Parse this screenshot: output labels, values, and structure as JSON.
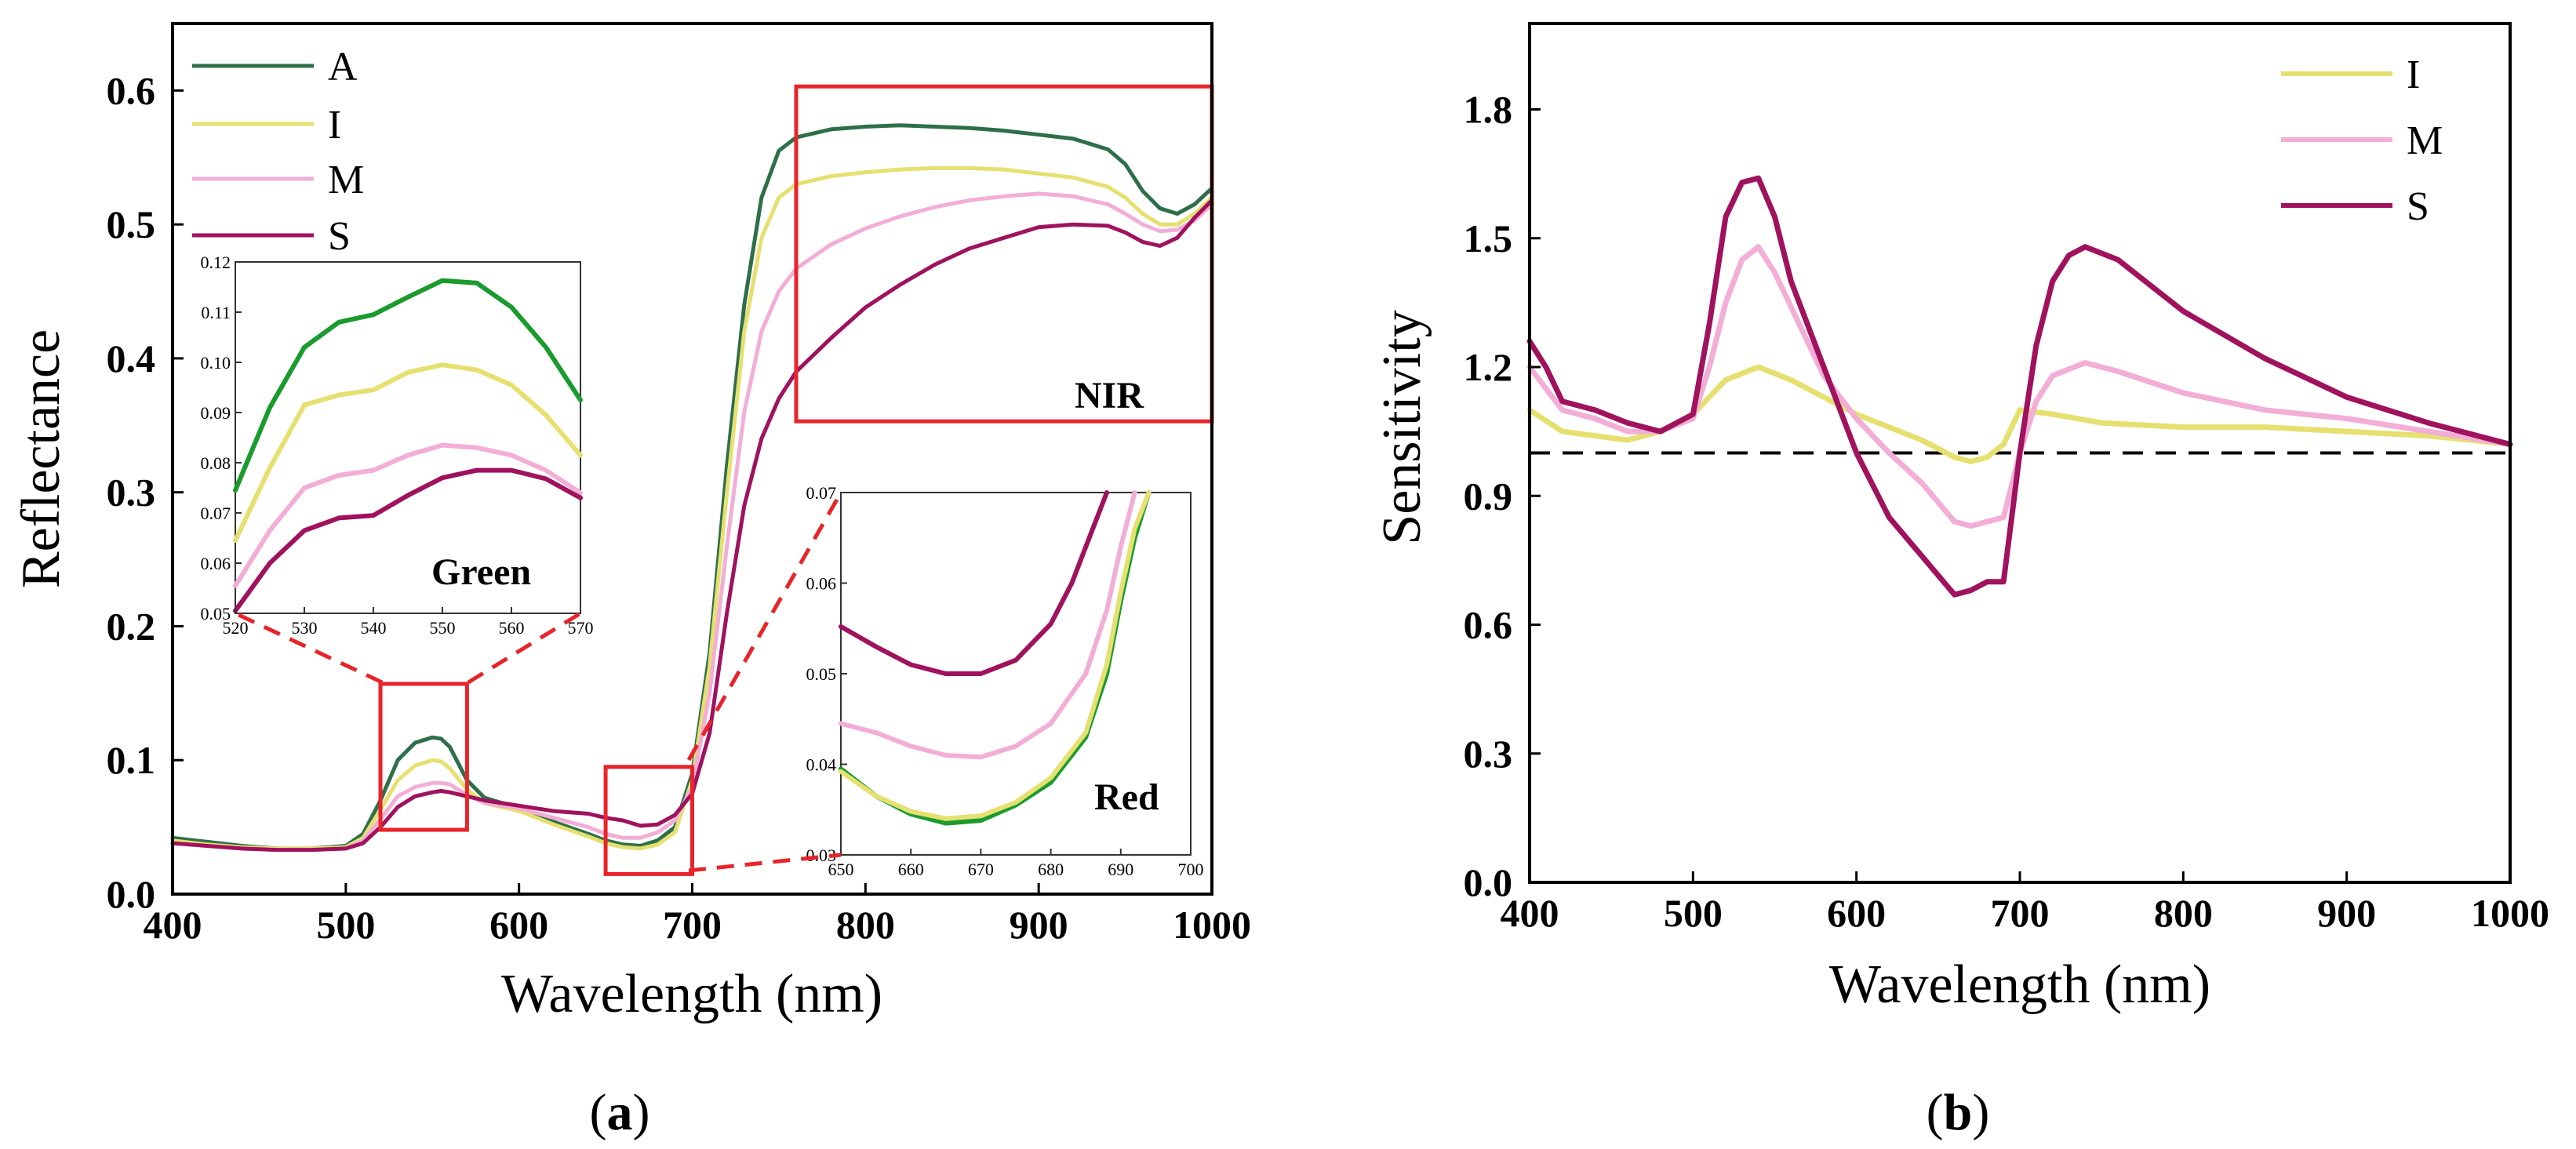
{
  "chart_data": [
    {
      "type": "line",
      "panel": "(a)",
      "panel_label_open": "(",
      "panel_label_letter": "a",
      "panel_label_close": ")",
      "xlabel": "Wavelength (nm)",
      "ylabel": "Reflectance",
      "xlim": [
        400,
        1000
      ],
      "ylim": [
        0,
        0.65
      ],
      "xticks": [
        "400",
        "500",
        "600",
        "700",
        "800",
        "900",
        "1000"
      ],
      "yticks": [
        "0.0",
        "0.1",
        "0.2",
        "0.3",
        "0.4",
        "0.5",
        "0.6"
      ],
      "legend": "top-left",
      "series": [
        {
          "name": "A",
          "color": "#2e6f4a",
          "x": [
            400,
            420,
            440,
            460,
            480,
            500,
            510,
            520,
            530,
            540,
            550,
            555,
            560,
            570,
            580,
            600,
            620,
            640,
            650,
            660,
            670,
            680,
            690,
            700,
            710,
            720,
            730,
            740,
            750,
            760,
            780,
            800,
            820,
            840,
            860,
            880,
            900,
            920,
            940,
            950,
            960,
            970,
            980,
            990,
            1000
          ],
          "y": [
            0.042,
            0.039,
            0.036,
            0.034,
            0.034,
            0.036,
            0.045,
            0.07,
            0.1,
            0.113,
            0.117,
            0.116,
            0.11,
            0.085,
            0.072,
            0.064,
            0.054,
            0.045,
            0.04,
            0.037,
            0.036,
            0.04,
            0.05,
            0.09,
            0.18,
            0.32,
            0.44,
            0.52,
            0.555,
            0.565,
            0.571,
            0.573,
            0.574,
            0.573,
            0.572,
            0.57,
            0.567,
            0.564,
            0.556,
            0.545,
            0.525,
            0.512,
            0.508,
            0.515,
            0.527
          ]
        },
        {
          "name": "I",
          "color": "#e6e070",
          "x": [
            400,
            420,
            440,
            460,
            480,
            500,
            510,
            520,
            530,
            540,
            550,
            555,
            560,
            570,
            580,
            600,
            620,
            640,
            650,
            660,
            670,
            680,
            690,
            700,
            710,
            720,
            730,
            740,
            750,
            760,
            780,
            800,
            820,
            840,
            860,
            880,
            900,
            920,
            940,
            950,
            960,
            970,
            980,
            990,
            1000
          ],
          "y": [
            0.04,
            0.037,
            0.035,
            0.034,
            0.034,
            0.035,
            0.042,
            0.063,
            0.085,
            0.096,
            0.1,
            0.099,
            0.094,
            0.078,
            0.068,
            0.062,
            0.052,
            0.043,
            0.038,
            0.035,
            0.034,
            0.037,
            0.046,
            0.085,
            0.17,
            0.3,
            0.42,
            0.49,
            0.52,
            0.53,
            0.536,
            0.539,
            0.541,
            0.542,
            0.542,
            0.541,
            0.538,
            0.535,
            0.528,
            0.52,
            0.508,
            0.5,
            0.5,
            0.508,
            0.52
          ]
        },
        {
          "name": "M",
          "color": "#f2aed6",
          "x": [
            400,
            420,
            440,
            460,
            480,
            500,
            510,
            520,
            530,
            540,
            550,
            555,
            560,
            570,
            580,
            600,
            620,
            640,
            650,
            660,
            670,
            680,
            690,
            700,
            710,
            720,
            730,
            740,
            750,
            760,
            780,
            800,
            820,
            840,
            860,
            880,
            900,
            920,
            940,
            950,
            960,
            970,
            980,
            990,
            1000
          ],
          "y": [
            0.038,
            0.036,
            0.034,
            0.033,
            0.033,
            0.034,
            0.04,
            0.056,
            0.073,
            0.08,
            0.083,
            0.083,
            0.082,
            0.074,
            0.068,
            0.064,
            0.057,
            0.05,
            0.045,
            0.042,
            0.042,
            0.046,
            0.055,
            0.08,
            0.15,
            0.26,
            0.36,
            0.42,
            0.45,
            0.467,
            0.485,
            0.497,
            0.506,
            0.513,
            0.518,
            0.521,
            0.523,
            0.521,
            0.515,
            0.508,
            0.5,
            0.495,
            0.496,
            0.503,
            0.515
          ]
        },
        {
          "name": "S",
          "color": "#a0125e",
          "x": [
            400,
            420,
            440,
            460,
            480,
            500,
            510,
            520,
            530,
            540,
            550,
            555,
            560,
            570,
            580,
            600,
            620,
            640,
            650,
            660,
            670,
            680,
            690,
            700,
            710,
            720,
            730,
            740,
            750,
            760,
            780,
            800,
            820,
            840,
            860,
            880,
            900,
            920,
            940,
            950,
            960,
            970,
            980,
            990,
            1000
          ],
          "y": [
            0.038,
            0.036,
            0.034,
            0.033,
            0.033,
            0.034,
            0.038,
            0.05,
            0.065,
            0.073,
            0.076,
            0.077,
            0.076,
            0.073,
            0.07,
            0.066,
            0.062,
            0.06,
            0.057,
            0.055,
            0.051,
            0.052,
            0.059,
            0.075,
            0.12,
            0.21,
            0.29,
            0.34,
            0.37,
            0.39,
            0.415,
            0.438,
            0.455,
            0.47,
            0.482,
            0.49,
            0.498,
            0.5,
            0.499,
            0.494,
            0.487,
            0.484,
            0.49,
            0.505,
            0.518
          ]
        }
      ],
      "highlight_boxes": [
        {
          "x": [
            520,
            570
          ],
          "y": [
            0.048,
            0.157
          ]
        },
        {
          "x": [
            650,
            700
          ],
          "y": [
            0.015,
            0.095
          ]
        },
        {
          "x": [
            760,
            1000
          ],
          "y": [
            0.353,
            0.603
          ]
        }
      ],
      "annotations": [
        "Green",
        "Red",
        "NIR"
      ],
      "insets": [
        {
          "label": "Green",
          "xlim": [
            520,
            570
          ],
          "ylim": [
            0.05,
            0.12
          ],
          "xticks": [
            "520",
            "530",
            "540",
            "550",
            "560",
            "570"
          ],
          "yticks": [
            "0.05",
            "0.06",
            "0.07",
            "0.08",
            "0.09",
            "0.10",
            "0.11",
            "0.12"
          ],
          "series": [
            {
              "name": "A",
              "color": "#1a9b2e",
              "x": [
                520,
                525,
                530,
                535,
                540,
                545,
                550,
                555,
                560,
                565,
                570
              ],
              "y": [
                0.0745,
                0.091,
                0.103,
                0.108,
                0.1095,
                0.113,
                0.1163,
                0.1158,
                0.111,
                0.103,
                0.0925
              ]
            },
            {
              "name": "I",
              "color": "#e6e070",
              "x": [
                520,
                525,
                530,
                535,
                540,
                545,
                550,
                555,
                560,
                565,
                570
              ],
              "y": [
                0.0645,
                0.079,
                0.0915,
                0.0935,
                0.0945,
                0.098,
                0.0995,
                0.0985,
                0.0955,
                0.0895,
                0.0815
              ]
            },
            {
              "name": "M",
              "color": "#f2aed6",
              "x": [
                520,
                525,
                530,
                535,
                540,
                545,
                550,
                555,
                560,
                565,
                570
              ],
              "y": [
                0.0555,
                0.0665,
                0.075,
                0.0775,
                0.0785,
                0.0815,
                0.0835,
                0.083,
                0.0815,
                0.0785,
                0.074
              ]
            },
            {
              "name": "S",
              "color": "#a0125e",
              "x": [
                520,
                525,
                530,
                535,
                540,
                545,
                550,
                555,
                560,
                565,
                570
              ],
              "y": [
                0.0505,
                0.06,
                0.0665,
                0.069,
                0.0695,
                0.0735,
                0.077,
                0.0785,
                0.0785,
                0.0768,
                0.073
              ]
            }
          ]
        },
        {
          "label": "Red",
          "xlim": [
            650,
            700
          ],
          "ylim": [
            0.03,
            0.07
          ],
          "xticks": [
            "650",
            "660",
            "670",
            "680",
            "690",
            "700"
          ],
          "yticks": [
            "0.03",
            "0.04",
            "0.05",
            "0.06",
            "0.07"
          ],
          "series": [
            {
              "name": "A",
              "color": "#1a9b2e",
              "x": [
                650,
                655,
                660,
                665,
                670,
                675,
                680,
                685,
                688,
                690,
                692,
                694
              ],
              "y": [
                0.0395,
                0.0365,
                0.0345,
                0.0335,
                0.0338,
                0.0355,
                0.038,
                0.043,
                0.05,
                0.058,
                0.065,
                0.07
              ]
            },
            {
              "name": "I",
              "color": "#e6e070",
              "x": [
                650,
                655,
                660,
                665,
                670,
                675,
                680,
                685,
                688,
                690,
                692,
                694
              ],
              "y": [
                0.0392,
                0.0365,
                0.0348,
                0.034,
                0.0343,
                0.0358,
                0.0385,
                0.0435,
                0.051,
                0.059,
                0.066,
                0.07
              ]
            },
            {
              "name": "M",
              "color": "#f2aed6",
              "x": [
                650,
                655,
                660,
                665,
                670,
                675,
                680,
                685,
                688,
                690,
                692
              ],
              "y": [
                0.0445,
                0.0435,
                0.042,
                0.041,
                0.0408,
                0.042,
                0.0445,
                0.05,
                0.057,
                0.064,
                0.07
              ]
            },
            {
              "name": "S",
              "color": "#a0125e",
              "x": [
                650,
                655,
                660,
                665,
                670,
                675,
                680,
                683,
                686,
                688
              ],
              "y": [
                0.0552,
                0.053,
                0.051,
                0.05,
                0.05,
                0.0515,
                0.0555,
                0.06,
                0.066,
                0.07
              ]
            }
          ]
        }
      ]
    },
    {
      "type": "line",
      "panel": "(b)",
      "panel_label_open": "(",
      "panel_label_letter": "b",
      "panel_label_close": ")",
      "xlabel": "Wavelength (nm)",
      "ylabel": "Sensitivity",
      "xlim": [
        400,
        1000
      ],
      "ylim": [
        0,
        2.0
      ],
      "xticks": [
        "400",
        "500",
        "600",
        "700",
        "800",
        "900",
        "1000"
      ],
      "yticks": [
        "0.0",
        "0.3",
        "0.6",
        "0.9",
        "1.2",
        "1.5",
        "1.8"
      ],
      "reference_line": 1.0,
      "legend": "top-right",
      "series": [
        {
          "name": "I",
          "color": "#e6e070",
          "x": [
            400,
            420,
            440,
            460,
            480,
            500,
            520,
            540,
            560,
            580,
            600,
            620,
            640,
            660,
            670,
            680,
            690,
            700,
            720,
            750,
            800,
            850,
            900,
            950,
            1000
          ],
          "y": [
            1.1,
            1.05,
            1.04,
            1.03,
            1.05,
            1.09,
            1.17,
            1.2,
            1.17,
            1.13,
            1.09,
            1.06,
            1.03,
            0.99,
            0.98,
            0.99,
            1.02,
            1.1,
            1.09,
            1.07,
            1.06,
            1.06,
            1.05,
            1.04,
            1.02
          ]
        },
        {
          "name": "M",
          "color": "#f2aed6",
          "x": [
            400,
            420,
            440,
            460,
            480,
            500,
            510,
            520,
            530,
            540,
            550,
            560,
            580,
            600,
            620,
            640,
            660,
            670,
            680,
            690,
            700,
            710,
            720,
            740,
            760,
            800,
            850,
            900,
            950,
            1000
          ],
          "y": [
            1.2,
            1.1,
            1.08,
            1.05,
            1.05,
            1.08,
            1.2,
            1.35,
            1.45,
            1.48,
            1.42,
            1.34,
            1.18,
            1.08,
            1.0,
            0.93,
            0.84,
            0.83,
            0.84,
            0.85,
            1.0,
            1.12,
            1.18,
            1.21,
            1.19,
            1.14,
            1.1,
            1.08,
            1.05,
            1.02
          ]
        },
        {
          "name": "S",
          "color": "#a0125e",
          "x": [
            400,
            410,
            420,
            440,
            460,
            480,
            500,
            510,
            520,
            530,
            540,
            550,
            560,
            580,
            600,
            620,
            640,
            660,
            670,
            680,
            690,
            700,
            710,
            720,
            730,
            740,
            760,
            800,
            850,
            900,
            950,
            1000
          ],
          "y": [
            1.26,
            1.2,
            1.12,
            1.1,
            1.07,
            1.05,
            1.09,
            1.3,
            1.55,
            1.63,
            1.64,
            1.55,
            1.4,
            1.2,
            1.0,
            0.85,
            0.76,
            0.67,
            0.68,
            0.7,
            0.7,
            1.0,
            1.25,
            1.4,
            1.46,
            1.48,
            1.45,
            1.33,
            1.22,
            1.13,
            1.07,
            1.02
          ]
        }
      ]
    }
  ]
}
